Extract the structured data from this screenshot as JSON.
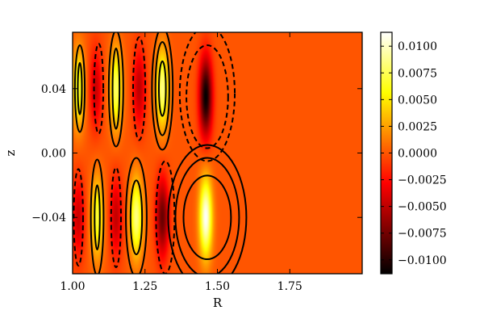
{
  "chart_data": {
    "type": "heatmap",
    "xlabel": "R",
    "ylabel": "z",
    "xlim": [
      1.0,
      2.0
    ],
    "ylim": [
      -0.075,
      0.075
    ],
    "x_ticks": [
      {
        "value": 1.0,
        "label": "1.00"
      },
      {
        "value": 1.25,
        "label": "1.25"
      },
      {
        "value": 1.5,
        "label": "1.50"
      },
      {
        "value": 1.75,
        "label": "1.75"
      }
    ],
    "y_ticks": [
      {
        "value": 0.04,
        "label": "0.04"
      },
      {
        "value": 0.0,
        "label": "0.00"
      },
      {
        "value": -0.04,
        "label": "−0.04"
      }
    ],
    "colorbar": {
      "colormap": "hot",
      "range": [
        -0.0113,
        0.0113
      ],
      "ticks": [
        {
          "value": 0.01,
          "label": "0.0100"
        },
        {
          "value": 0.0075,
          "label": "0.0075"
        },
        {
          "value": 0.005,
          "label": "0.0050"
        },
        {
          "value": 0.0025,
          "label": "0.0025"
        },
        {
          "value": 0.0,
          "label": "0.0000"
        },
        {
          "value": -0.0025,
          "label": "−0.0025"
        },
        {
          "value": -0.005,
          "label": "−0.0050"
        },
        {
          "value": -0.0075,
          "label": "−0.0075"
        },
        {
          "value": -0.01,
          "label": "−0.0100"
        }
      ]
    },
    "field_lobes": [
      {
        "r": 1.02,
        "z": 0.04,
        "amplitude": 0.0068
      },
      {
        "r": 1.08,
        "z": 0.04,
        "amplitude": -0.0045
      },
      {
        "r": 1.15,
        "z": 0.04,
        "amplitude": 0.0078
      },
      {
        "r": 1.23,
        "z": 0.04,
        "amplitude": -0.005
      },
      {
        "r": 1.31,
        "z": 0.04,
        "amplitude": 0.0085
      },
      {
        "r": 1.46,
        "z": 0.035,
        "amplitude": -0.0112
      },
      {
        "r": 1.02,
        "z": -0.04,
        "amplitude": -0.0045
      },
      {
        "r": 1.085,
        "z": -0.04,
        "amplitude": 0.0068
      },
      {
        "r": 1.15,
        "z": -0.04,
        "amplitude": -0.0048
      },
      {
        "r": 1.22,
        "z": -0.04,
        "amplitude": 0.0085
      },
      {
        "r": 1.31,
        "z": -0.04,
        "amplitude": -0.0078
      },
      {
        "r": 1.46,
        "z": -0.04,
        "amplitude": 0.0112
      }
    ],
    "contours": [
      {
        "r": 1.025,
        "z": 0.04,
        "rx": 0.017,
        "rz": 0.027,
        "style": "solid"
      },
      {
        "r": 1.025,
        "z": 0.04,
        "rx": 0.007,
        "rz": 0.016,
        "style": "solid"
      },
      {
        "r": 1.09,
        "z": 0.04,
        "rx": 0.016,
        "rz": 0.028,
        "style": "dashed"
      },
      {
        "r": 1.15,
        "z": 0.04,
        "rx": 0.025,
        "rz": 0.036,
        "style": "solid"
      },
      {
        "r": 1.15,
        "z": 0.04,
        "rx": 0.012,
        "rz": 0.025,
        "style": "solid"
      },
      {
        "r": 1.23,
        "z": 0.04,
        "rx": 0.021,
        "rz": 0.032,
        "style": "dashed"
      },
      {
        "r": 1.31,
        "z": 0.04,
        "rx": 0.036,
        "rz": 0.038,
        "style": "solid"
      },
      {
        "r": 1.31,
        "z": 0.04,
        "rx": 0.024,
        "rz": 0.029,
        "style": "solid"
      },
      {
        "r": 1.31,
        "z": 0.04,
        "rx": 0.012,
        "rz": 0.017,
        "style": "solid"
      },
      {
        "r": 1.465,
        "z": 0.037,
        "rx": 0.095,
        "rz": 0.042,
        "style": "dashed"
      },
      {
        "r": 1.465,
        "z": 0.035,
        "rx": 0.072,
        "rz": 0.032,
        "style": "dashed"
      },
      {
        "r": 1.02,
        "z": -0.04,
        "rx": 0.016,
        "rz": 0.03,
        "style": "dashed"
      },
      {
        "r": 1.085,
        "z": -0.04,
        "rx": 0.022,
        "rz": 0.036,
        "style": "solid"
      },
      {
        "r": 1.085,
        "z": -0.04,
        "rx": 0.009,
        "rz": 0.02,
        "style": "solid"
      },
      {
        "r": 1.15,
        "z": -0.04,
        "rx": 0.017,
        "rz": 0.031,
        "style": "dashed"
      },
      {
        "r": 1.22,
        "z": -0.04,
        "rx": 0.036,
        "rz": 0.037,
        "style": "solid"
      },
      {
        "r": 1.22,
        "z": -0.04,
        "rx": 0.02,
        "rz": 0.023,
        "style": "solid"
      },
      {
        "r": 1.32,
        "z": -0.04,
        "rx": 0.032,
        "rz": 0.035,
        "style": "dashed"
      },
      {
        "r": 1.465,
        "z": -0.04,
        "rx": 0.135,
        "rz": 0.045,
        "style": "solid"
      },
      {
        "r": 1.465,
        "z": -0.04,
        "rx": 0.11,
        "rz": 0.037,
        "style": "solid"
      },
      {
        "r": 1.465,
        "z": -0.04,
        "rx": 0.082,
        "rz": 0.026,
        "style": "solid"
      }
    ]
  }
}
